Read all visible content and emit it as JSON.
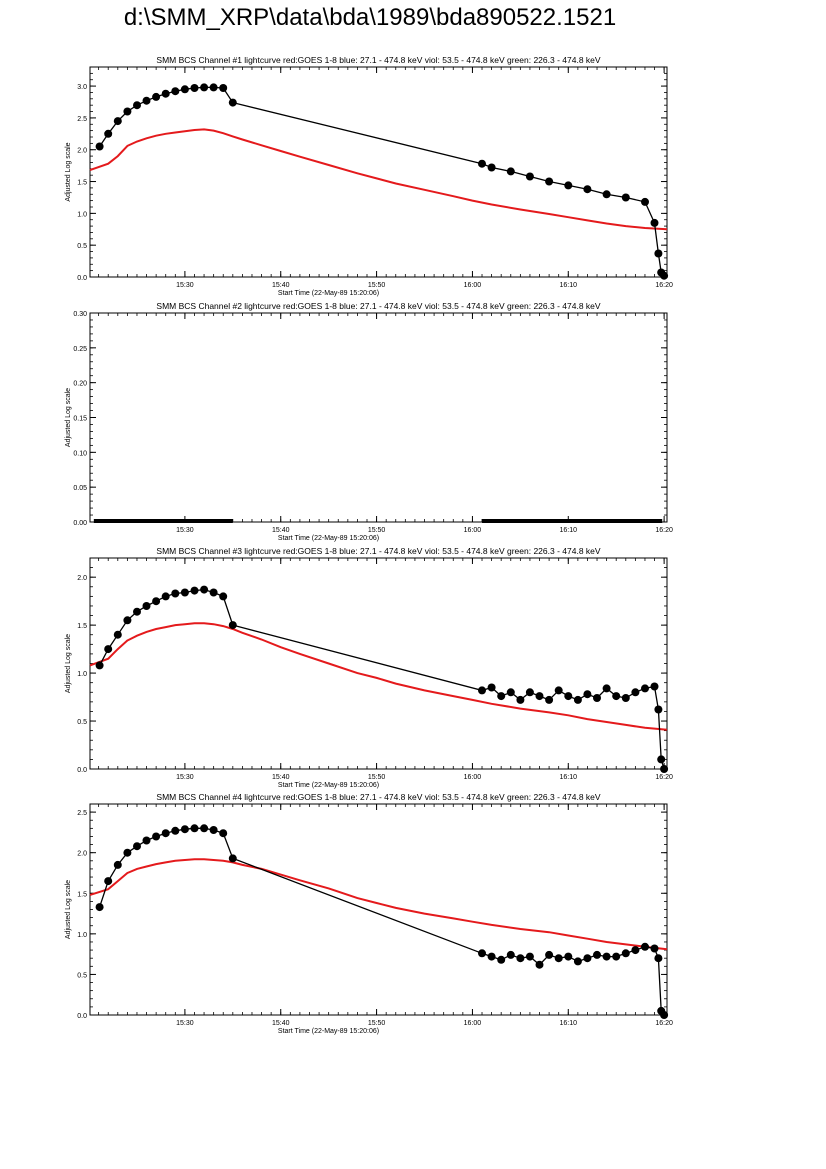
{
  "page_title": "d:\\SMM_XRP\\data\\bda\\1989\\bda890522.1521",
  "colors": {
    "goes": "#e41a1c",
    "channel": "#000000",
    "axis": "#000000"
  },
  "x_axis": {
    "label": "Start Time (22-May-89 15:20:06)",
    "ticks": [
      {
        "t": 30,
        "label": "15:30"
      },
      {
        "t": 40,
        "label": "15:40"
      },
      {
        "t": 50,
        "label": "15:50"
      },
      {
        "t": 60,
        "label": "16:00"
      },
      {
        "t": 70,
        "label": "16:10"
      },
      {
        "t": 80,
        "label": "16:20"
      }
    ]
  },
  "chart_data": [
    {
      "type": "scatter",
      "title": "SMM BCS Channel #1 lightcurve  red:GOES 1-8  blue: 27.1 - 474.8 keV  viol: 53.5 - 474.8 keV  green: 226.3 - 474.8 keV",
      "xlabel": "Start Time (22-May-89 15:20:06)",
      "ylabel": "Adjusted Log scale",
      "xlim": [
        20.1,
        80.3
      ],
      "ylim": [
        0,
        3.3
      ],
      "yticks": [
        {
          "v": 0.0,
          "label": "0.0"
        },
        {
          "v": 0.5,
          "label": "0.5"
        },
        {
          "v": 1.0,
          "label": "1.0"
        },
        {
          "v": 1.5,
          "label": "1.5"
        },
        {
          "v": 2.0,
          "label": "2.0"
        },
        {
          "v": 2.5,
          "label": "2.5"
        },
        {
          "v": 3.0,
          "label": "3.0"
        }
      ],
      "series": [
        {
          "kind": "goes",
          "x": [
            20.1,
            22,
            23,
            24,
            25,
            26,
            27,
            28,
            29,
            30,
            31,
            32,
            33,
            34,
            35,
            36,
            38,
            40,
            42,
            45,
            48,
            50,
            52,
            55,
            58,
            60,
            62,
            65,
            68,
            70,
            72,
            74,
            76,
            78,
            80.3
          ],
          "y": [
            1.68,
            1.78,
            1.9,
            2.06,
            2.13,
            2.18,
            2.22,
            2.25,
            2.27,
            2.29,
            2.31,
            2.32,
            2.3,
            2.26,
            2.21,
            2.16,
            2.07,
            1.98,
            1.89,
            1.76,
            1.63,
            1.55,
            1.47,
            1.37,
            1.27,
            1.2,
            1.14,
            1.06,
            0.99,
            0.94,
            0.89,
            0.84,
            0.8,
            0.77,
            0.75
          ]
        },
        {
          "kind": "channel",
          "x": [
            21.1,
            22,
            23,
            24,
            25,
            26,
            27,
            28,
            29,
            30,
            31,
            32,
            33,
            34,
            35,
            61,
            62,
            64,
            66,
            68,
            70,
            72,
            74,
            76,
            78,
            79,
            79.4,
            79.7,
            80.0
          ],
          "y": [
            2.05,
            2.25,
            2.45,
            2.6,
            2.7,
            2.77,
            2.83,
            2.88,
            2.92,
            2.95,
            2.97,
            2.98,
            2.98,
            2.97,
            2.74,
            1.78,
            1.72,
            1.66,
            1.58,
            1.5,
            1.44,
            1.38,
            1.3,
            1.25,
            1.18,
            0.85,
            0.37,
            0.07,
            0.02
          ]
        }
      ]
    },
    {
      "type": "scatter",
      "title": "SMM BCS Channel #2 lightcurve  red:GOES 1-8  blue: 27.1 - 474.8 keV  viol: 53.5 - 474.8 keV  green: 226.3 - 474.8 keV",
      "xlabel": "Start Time (22-May-89 15:20:06)",
      "ylabel": "Adjusted Log scale",
      "xlim": [
        20.1,
        80.3
      ],
      "ylim": [
        0,
        0.3
      ],
      "yticks": [
        {
          "v": 0.0,
          "label": "0.00"
        },
        {
          "v": 0.05,
          "label": "0.05"
        },
        {
          "v": 0.1,
          "label": "0.10"
        },
        {
          "v": 0.15,
          "label": "0.15"
        },
        {
          "v": 0.2,
          "label": "0.20"
        },
        {
          "v": 0.25,
          "label": "0.25"
        },
        {
          "v": 0.3,
          "label": "0.30"
        }
      ],
      "series": [
        {
          "kind": "channel-flat",
          "x": [
            20.5,
            35.0,
            61.0,
            79.8
          ],
          "y": [
            0,
            0,
            0,
            0
          ]
        }
      ]
    },
    {
      "type": "scatter",
      "title": "SMM BCS Channel #3 lightcurve  red:GOES 1-8  blue: 27.1 - 474.8 keV  viol: 53.5 - 474.8 keV  green: 226.3 - 474.8 keV",
      "xlabel": "Start Time (22-May-89 15:20:06)",
      "ylabel": "Adjusted Log scale",
      "xlim": [
        20.1,
        80.3
      ],
      "ylim": [
        0,
        2.2
      ],
      "yticks": [
        {
          "v": 0.0,
          "label": "0.0"
        },
        {
          "v": 0.5,
          "label": "0.5"
        },
        {
          "v": 1.0,
          "label": "1.0"
        },
        {
          "v": 1.5,
          "label": "1.5"
        },
        {
          "v": 2.0,
          "label": "2.0"
        }
      ],
      "series": [
        {
          "kind": "goes",
          "x": [
            20.1,
            22,
            23,
            24,
            25,
            26,
            27,
            28,
            29,
            30,
            31,
            32,
            33,
            34,
            35,
            36,
            38,
            40,
            42,
            45,
            48,
            50,
            52,
            55,
            58,
            60,
            62,
            65,
            68,
            70,
            72,
            74,
            76,
            78,
            80.3
          ],
          "y": [
            1.08,
            1.15,
            1.25,
            1.34,
            1.39,
            1.43,
            1.46,
            1.48,
            1.5,
            1.51,
            1.52,
            1.52,
            1.51,
            1.49,
            1.46,
            1.42,
            1.35,
            1.27,
            1.2,
            1.1,
            1.0,
            0.95,
            0.89,
            0.82,
            0.76,
            0.72,
            0.68,
            0.63,
            0.59,
            0.56,
            0.52,
            0.49,
            0.46,
            0.43,
            0.41
          ]
        },
        {
          "kind": "channel",
          "x": [
            21.1,
            22,
            23,
            24,
            25,
            26,
            27,
            28,
            29,
            30,
            31,
            32,
            33,
            34,
            35,
            61,
            62,
            63,
            64,
            65,
            66,
            67,
            68,
            69,
            70,
            71,
            72,
            73,
            74,
            75,
            76,
            77,
            78,
            79,
            79.4,
            79.7,
            80.0
          ],
          "y": [
            1.08,
            1.25,
            1.4,
            1.55,
            1.64,
            1.7,
            1.75,
            1.8,
            1.83,
            1.84,
            1.86,
            1.87,
            1.84,
            1.8,
            1.5,
            0.82,
            0.85,
            0.76,
            0.8,
            0.72,
            0.8,
            0.76,
            0.72,
            0.82,
            0.76,
            0.72,
            0.78,
            0.74,
            0.84,
            0.76,
            0.74,
            0.8,
            0.84,
            0.86,
            0.62,
            0.1,
            0.0
          ]
        }
      ]
    },
    {
      "type": "scatter",
      "title": "SMM BCS Channel #4 lightcurve  red:GOES 1-8  blue: 27.1 - 474.8 keV  viol: 53.5 - 474.8 keV  green: 226.3 - 474.8 keV",
      "xlabel": "Start Time (22-May-89 15:20:06)",
      "ylabel": "Adjusted Log scale",
      "xlim": [
        20.1,
        80.3
      ],
      "ylim": [
        0,
        2.6
      ],
      "yticks": [
        {
          "v": 0.0,
          "label": "0.0"
        },
        {
          "v": 0.5,
          "label": "0.5"
        },
        {
          "v": 1.0,
          "label": "1.0"
        },
        {
          "v": 1.5,
          "label": "1.5"
        },
        {
          "v": 2.0,
          "label": "2.0"
        },
        {
          "v": 2.5,
          "label": "2.5"
        }
      ],
      "series": [
        {
          "kind": "goes",
          "x": [
            20.1,
            22,
            23,
            24,
            25,
            26,
            27,
            28,
            29,
            30,
            31,
            32,
            33,
            34,
            35,
            36,
            38,
            40,
            42,
            45,
            48,
            50,
            52,
            55,
            58,
            60,
            62,
            65,
            68,
            70,
            72,
            74,
            76,
            78,
            80.3
          ],
          "y": [
            1.48,
            1.55,
            1.65,
            1.75,
            1.8,
            1.83,
            1.86,
            1.88,
            1.9,
            1.91,
            1.92,
            1.92,
            1.91,
            1.9,
            1.88,
            1.85,
            1.8,
            1.73,
            1.66,
            1.56,
            1.44,
            1.38,
            1.32,
            1.25,
            1.19,
            1.15,
            1.11,
            1.06,
            1.02,
            0.98,
            0.94,
            0.9,
            0.87,
            0.84,
            0.81
          ]
        },
        {
          "kind": "channel",
          "x": [
            21.1,
            22,
            23,
            24,
            25,
            26,
            27,
            28,
            29,
            30,
            31,
            32,
            33,
            34,
            35,
            61,
            62,
            63,
            64,
            65,
            66,
            67,
            68,
            69,
            70,
            71,
            72,
            73,
            74,
            75,
            76,
            77,
            78,
            79,
            79.4,
            79.7,
            80.0
          ],
          "y": [
            1.33,
            1.65,
            1.85,
            2.0,
            2.08,
            2.15,
            2.2,
            2.24,
            2.27,
            2.29,
            2.3,
            2.3,
            2.28,
            2.24,
            1.93,
            0.76,
            0.72,
            0.68,
            0.74,
            0.7,
            0.72,
            0.62,
            0.74,
            0.7,
            0.72,
            0.66,
            0.7,
            0.74,
            0.72,
            0.72,
            0.76,
            0.8,
            0.84,
            0.82,
            0.7,
            0.05,
            0.0
          ]
        }
      ]
    }
  ]
}
